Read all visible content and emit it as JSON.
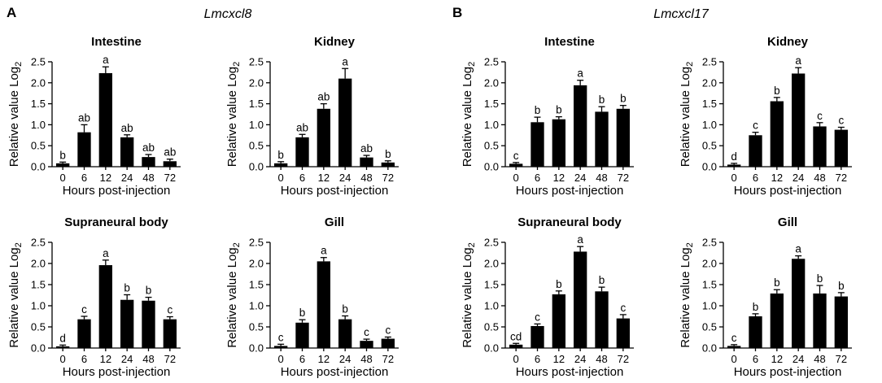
{
  "figure": {
    "panel_a": {
      "letter": "A",
      "gene": "Lmcxcl8"
    },
    "panel_b": {
      "letter": "B",
      "gene": "Lmcxcl17"
    }
  },
  "chart_data": [
    {
      "type": "bar",
      "panel": "A",
      "gene": "Lmcxcl8",
      "title": "Intestine",
      "xlabel": "Hours post-injection",
      "ylabel": "Relative value Log2",
      "categories": [
        "0",
        "6",
        "12",
        "24",
        "48",
        "72"
      ],
      "values": [
        0.08,
        0.82,
        2.23,
        0.7,
        0.23,
        0.13
      ],
      "errors": [
        0.03,
        0.18,
        0.15,
        0.06,
        0.06,
        0.05
      ],
      "letters": [
        "b",
        "ab",
        "a",
        "ab",
        "ab",
        "ab"
      ],
      "ylim": [
        0,
        2.5
      ],
      "yticks": [
        "0.0",
        "0.5",
        "1.0",
        "1.5",
        "2.0",
        "2.5"
      ]
    },
    {
      "type": "bar",
      "panel": "A",
      "gene": "Lmcxcl8",
      "title": "Kidney",
      "xlabel": "Hours post-injection",
      "ylabel": "Relative value Log2",
      "categories": [
        "0",
        "6",
        "12",
        "24",
        "48",
        "72"
      ],
      "values": [
        0.08,
        0.7,
        1.38,
        2.1,
        0.22,
        0.1
      ],
      "errors": [
        0.04,
        0.07,
        0.12,
        0.24,
        0.05,
        0.04
      ],
      "letters": [
        "b",
        "ab",
        "ab",
        "a",
        "ab",
        "b"
      ],
      "ylim": [
        0,
        2.5
      ],
      "yticks": [
        "0.0",
        "0.5",
        "1.0",
        "1.5",
        "2.0",
        "2.5"
      ]
    },
    {
      "type": "bar",
      "panel": "A",
      "gene": "Lmcxcl8",
      "title": "Supraneural body",
      "xlabel": "Hours post-injection",
      "ylabel": "Relative value Log2",
      "categories": [
        "0",
        "6",
        "12",
        "24",
        "48",
        "72"
      ],
      "values": [
        0.04,
        0.68,
        1.96,
        1.14,
        1.12,
        0.68
      ],
      "errors": [
        0.03,
        0.07,
        0.12,
        0.12,
        0.08,
        0.06
      ],
      "letters": [
        "d",
        "c",
        "a",
        "b",
        "b",
        "c"
      ],
      "ylim": [
        0,
        2.5
      ],
      "yticks": [
        "0.0",
        "0.5",
        "1.0",
        "1.5",
        "2.0",
        "2.5"
      ]
    },
    {
      "type": "bar",
      "panel": "A",
      "gene": "Lmcxcl8",
      "title": "Gill",
      "xlabel": "Hours post-injection",
      "ylabel": "Relative value Log2",
      "categories": [
        "0",
        "6",
        "12",
        "24",
        "48",
        "72"
      ],
      "values": [
        0.05,
        0.6,
        2.05,
        0.68,
        0.17,
        0.22
      ],
      "errors": [
        0.04,
        0.07,
        0.09,
        0.08,
        0.04,
        0.04
      ],
      "letters": [
        "c",
        "b",
        "a",
        "b",
        "c",
        "c"
      ],
      "ylim": [
        0,
        2.5
      ],
      "yticks": [
        "0.0",
        "0.5",
        "1.0",
        "1.5",
        "2.0",
        "2.5"
      ]
    },
    {
      "type": "bar",
      "panel": "B",
      "gene": "Lmcxcl17",
      "title": "Intestine",
      "xlabel": "Hours post-injection",
      "ylabel": "Relative value Log2",
      "categories": [
        "0",
        "6",
        "12",
        "24",
        "48",
        "72"
      ],
      "values": [
        0.07,
        1.06,
        1.13,
        1.94,
        1.31,
        1.38
      ],
      "errors": [
        0.03,
        0.12,
        0.06,
        0.12,
        0.12,
        0.08
      ],
      "letters": [
        "c",
        "b",
        "b",
        "a",
        "b",
        "b"
      ],
      "ylim": [
        0,
        2.5
      ],
      "yticks": [
        "0.0",
        "0.5",
        "1.0",
        "1.5",
        "2.0",
        "2.5"
      ]
    },
    {
      "type": "bar",
      "panel": "B",
      "gene": "Lmcxcl17",
      "title": "Kidney",
      "xlabel": "Hours post-injection",
      "ylabel": "Relative value Log2",
      "categories": [
        "0",
        "6",
        "12",
        "24",
        "48",
        "72"
      ],
      "values": [
        0.05,
        0.75,
        1.56,
        2.22,
        0.96,
        0.88
      ],
      "errors": [
        0.03,
        0.07,
        0.09,
        0.14,
        0.09,
        0.06
      ],
      "letters": [
        "d",
        "c",
        "b",
        "a",
        "c",
        "c"
      ],
      "ylim": [
        0,
        2.5
      ],
      "yticks": [
        "0.0",
        "0.5",
        "1.0",
        "1.5",
        "2.0",
        "2.5"
      ]
    },
    {
      "type": "bar",
      "panel": "B",
      "gene": "Lmcxcl17",
      "title": "Supraneural body",
      "xlabel": "Hours post-injection",
      "ylabel": "Relative value Log2",
      "categories": [
        "0",
        "6",
        "12",
        "24",
        "48",
        "72"
      ],
      "values": [
        0.08,
        0.52,
        1.27,
        2.28,
        1.34,
        0.7
      ],
      "errors": [
        0.03,
        0.05,
        0.08,
        0.12,
        0.1,
        0.09
      ],
      "letters": [
        "cd",
        "c",
        "b",
        "a",
        "b",
        "c"
      ],
      "ylim": [
        0,
        2.5
      ],
      "yticks": [
        "0.0",
        "0.5",
        "1.0",
        "1.5",
        "2.0",
        "2.5"
      ]
    },
    {
      "type": "bar",
      "panel": "B",
      "gene": "Lmcxcl17",
      "title": "Gill",
      "xlabel": "Hours post-injection",
      "ylabel": "Relative value Log2",
      "categories": [
        "0",
        "6",
        "12",
        "24",
        "48",
        "72"
      ],
      "values": [
        0.05,
        0.75,
        1.29,
        2.11,
        1.29,
        1.22
      ],
      "errors": [
        0.03,
        0.06,
        0.09,
        0.07,
        0.19,
        0.09
      ],
      "letters": [
        "c",
        "b",
        "b",
        "a",
        "b",
        "b"
      ],
      "ylim": [
        0,
        2.5
      ],
      "yticks": [
        "0.0",
        "0.5",
        "1.0",
        "1.5",
        "2.0",
        "2.5"
      ]
    }
  ]
}
